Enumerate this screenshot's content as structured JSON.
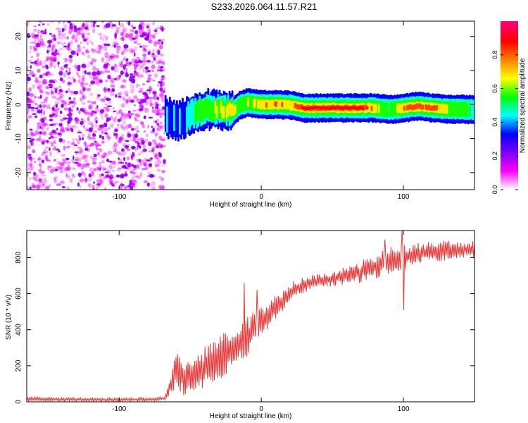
{
  "figure_title": "S233.2026.064.11.57.R21",
  "chart_data": [
    {
      "type": "heatmap",
      "xlabel": "Height of straight line (km)",
      "ylabel": "Frequency (Hz)",
      "xlim": [
        -165,
        150
      ],
      "ylim": [
        -25,
        24.5
      ],
      "xticks": [
        -100,
        0,
        100
      ],
      "yticks": [
        -20,
        -10,
        0,
        10,
        20
      ],
      "xtick_labels": [
        "-100",
        "0",
        "100"
      ],
      "ytick_labels": [
        "-20",
        "-10",
        "0",
        "10",
        "20"
      ],
      "colorbar": {
        "label": "Normalized spectral amplitude",
        "range": [
          0,
          1
        ],
        "ticks": [
          0.0,
          0.2,
          0.4,
          0.6,
          0.8
        ],
        "tick_labels": [
          "0.0",
          "0.2",
          "0.4",
          "0.6",
          "0.8"
        ],
        "colors": [
          "#ffffff",
          "#ff00ff",
          "#7f00ff",
          "#0000ff",
          "#00ffff",
          "#00ff00",
          "#ffff00",
          "#ff7f00",
          "#ff0000",
          "#ff0080"
        ]
      },
      "noise_region": {
        "x_range": [
          -165,
          -68
        ],
        "freq_range": [
          -25,
          24.5
        ],
        "amplitude": [
          0.05,
          0.2
        ]
      },
      "carrier_line": {
        "x": [
          -68,
          -60,
          -50,
          -40,
          -30,
          -20,
          -15,
          -10,
          0,
          10,
          20,
          30,
          50,
          70,
          80,
          90,
          100,
          110,
          120,
          130,
          150
        ],
        "freq": [
          -3.5,
          -5,
          -3,
          -1.5,
          -1.5,
          -1.8,
          0,
          0.5,
          0,
          0,
          -0.2,
          -1,
          -1,
          -1,
          -1,
          -1.5,
          -1,
          -0.5,
          -1,
          -1.3,
          -1.5
        ],
        "amplitude": [
          0.45,
          0.4,
          0.5,
          0.6,
          0.7,
          0.75,
          0.6,
          0.65,
          0.75,
          0.85,
          0.75,
          0.95,
          1.0,
          0.95,
          0.7,
          0.6,
          0.8,
          0.85,
          0.9,
          0.7,
          0.5
        ]
      }
    },
    {
      "type": "line",
      "xlabel": "Height of straight line (km)",
      "ylabel": "SNR (10 * v/v)",
      "xlim": [
        -165,
        150
      ],
      "ylim": [
        0,
        950
      ],
      "xticks": [
        -100,
        0,
        100
      ],
      "yticks": [
        0,
        200,
        400,
        600,
        800
      ],
      "xtick_labels": [
        "-100",
        "0",
        "100"
      ],
      "ytick_labels": [
        "0",
        "200",
        "400",
        "600",
        "800"
      ],
      "series": [
        {
          "name": "SNR",
          "color": "#ee3333",
          "x": [
            -165,
            -150,
            -130,
            -110,
            -90,
            -75,
            -68,
            -65,
            -62,
            -60,
            -58,
            -55,
            -50,
            -45,
            -40,
            -35,
            -30,
            -25,
            -20,
            -15,
            -10,
            -5,
            0,
            5,
            10,
            15,
            20,
            25,
            30,
            40,
            50,
            60,
            70,
            80,
            90,
            100,
            110,
            120,
            130,
            140,
            150
          ],
          "mean": [
            15,
            14,
            13,
            12,
            13,
            14,
            20,
            60,
            140,
            190,
            170,
            120,
            140,
            170,
            190,
            210,
            240,
            270,
            300,
            330,
            360,
            400,
            440,
            480,
            520,
            560,
            600,
            630,
            650,
            670,
            680,
            700,
            720,
            750,
            780,
            800,
            820,
            830,
            840,
            840,
            850
          ],
          "amplitude": [
            12,
            12,
            10,
            10,
            10,
            10,
            10,
            40,
            80,
            100,
            100,
            90,
            100,
            110,
            120,
            130,
            140,
            140,
            130,
            120,
            110,
            100,
            90,
            80,
            70,
            60,
            55,
            50,
            45,
            40,
            40,
            50,
            60,
            70,
            80,
            70,
            60,
            60,
            55,
            50,
            50
          ],
          "spikes": [
            {
              "x": -12,
              "y": 660
            },
            {
              "x": -3,
              "y": 620
            },
            {
              "x": 87,
              "y": 900
            },
            {
              "x": 99,
              "y": 950
            },
            {
              "x": 100,
              "y": 510
            }
          ]
        }
      ]
    }
  ]
}
